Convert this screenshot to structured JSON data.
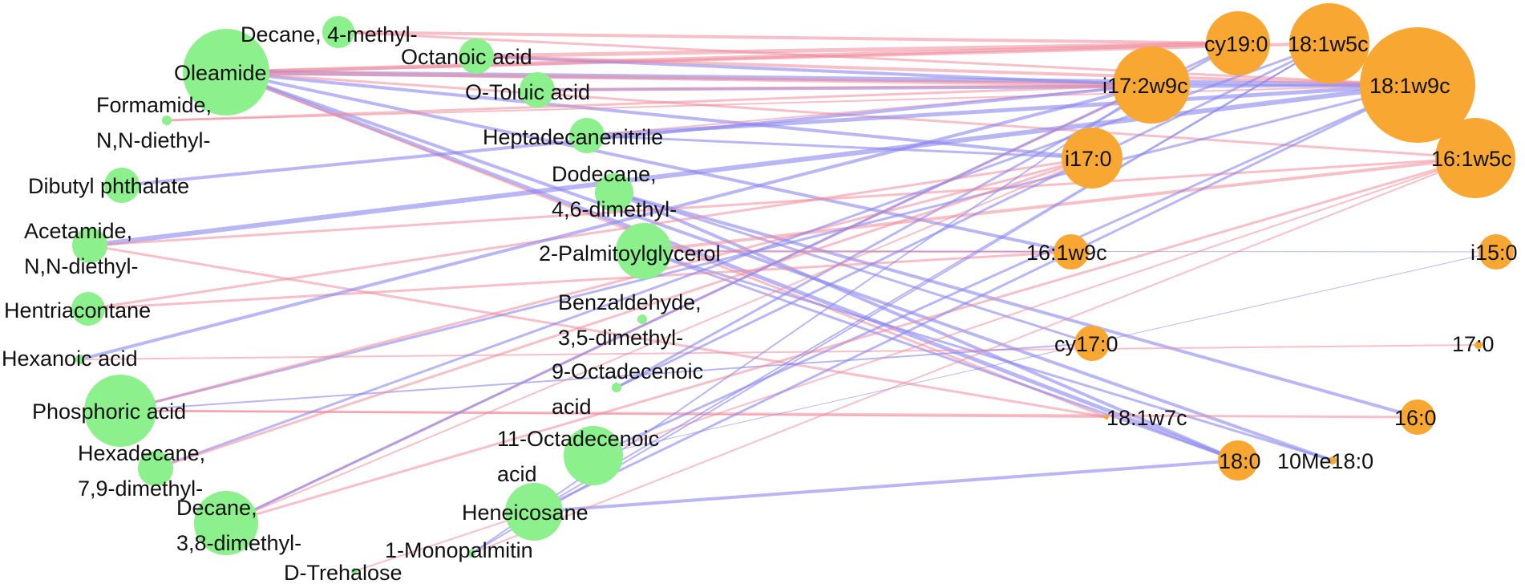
{
  "colors": {
    "metabolite": "#8cf08c",
    "fatty_acid": "#f8a733",
    "positive_edge": "#f08a9a",
    "negative_edge": "#8a86ee",
    "label": "#111111"
  },
  "metabolites": [
    {
      "id": "decane_4_methyl",
      "lines": [
        "Decane, 4-methyl-"
      ]
    },
    {
      "id": "octanoic_acid",
      "lines": [
        "Octanoic acid"
      ]
    },
    {
      "id": "oleamide",
      "lines": [
        "Oleamide"
      ]
    },
    {
      "id": "o_toluic_acid",
      "lines": [
        "O-Toluic acid"
      ]
    },
    {
      "id": "formamide",
      "lines": [
        "Formamide,",
        "N,N-diethyl-"
      ]
    },
    {
      "id": "heptadecanenitrile",
      "lines": [
        "Heptadecanenitrile"
      ]
    },
    {
      "id": "dibutyl_phthalate",
      "lines": [
        "Dibutyl phthalate"
      ]
    },
    {
      "id": "dodecane",
      "lines": [
        "Dodecane,",
        "4,6-dimethyl-"
      ]
    },
    {
      "id": "acetamide",
      "lines": [
        "Acetamide,",
        "N,N-diethyl-"
      ]
    },
    {
      "id": "palmitoylglycerol",
      "lines": [
        "2-Palmitoylglycerol"
      ]
    },
    {
      "id": "hentriacontane",
      "lines": [
        "Hentriacontane"
      ]
    },
    {
      "id": "benzaldehyde",
      "lines": [
        "Benzaldehyde,",
        "3,5-dimethyl-"
      ]
    },
    {
      "id": "hexanoic_acid",
      "lines": [
        "Hexanoic acid"
      ]
    },
    {
      "id": "octadecenoic_9",
      "lines": [
        "9-Octadecenoic",
        "acid"
      ]
    },
    {
      "id": "phosphoric_acid",
      "lines": [
        "Phosphoric acid"
      ]
    },
    {
      "id": "hexadecane",
      "lines": [
        "Hexadecane,",
        "7,9-dimethyl-"
      ]
    },
    {
      "id": "octadecenoic_11",
      "lines": [
        "11-Octadecenoic",
        "acid"
      ]
    },
    {
      "id": "decane_3_8",
      "lines": [
        "Decane,",
        "3,8-dimethyl-"
      ]
    },
    {
      "id": "heneicosane",
      "lines": [
        "Heneicosane"
      ]
    },
    {
      "id": "monopalmitin",
      "lines": [
        "1-Monopalmitin"
      ]
    },
    {
      "id": "trehalose",
      "lines": [
        "D-Trehalose"
      ]
    }
  ],
  "fatty_acids": [
    {
      "id": "cy19_0",
      "lines": [
        "cy19:0"
      ]
    },
    {
      "id": "c18_1w5c",
      "lines": [
        "18:1w5c"
      ]
    },
    {
      "id": "c18_1w9c",
      "lines": [
        "18:1w9c"
      ]
    },
    {
      "id": "i17_2w9c",
      "lines": [
        "i17:2w9c"
      ]
    },
    {
      "id": "i17_0",
      "lines": [
        "i17:0"
      ]
    },
    {
      "id": "c16_1w5c",
      "lines": [
        "16:1w5c"
      ]
    },
    {
      "id": "c16_1w9c",
      "lines": [
        "16:1w9c"
      ]
    },
    {
      "id": "i15_0",
      "lines": [
        "i15:0"
      ]
    },
    {
      "id": "cy17_0",
      "lines": [
        "cy17:0"
      ]
    },
    {
      "id": "c17_0",
      "lines": [
        "17:0"
      ]
    },
    {
      "id": "c18_1w7c",
      "lines": [
        "18:1w7c"
      ]
    },
    {
      "id": "c16_0",
      "lines": [
        "16:0"
      ]
    },
    {
      "id": "c18_0",
      "lines": [
        "18:0"
      ]
    },
    {
      "id": "c10me18_0",
      "lines": [
        "10Me18:0"
      ]
    }
  ],
  "edges": [
    [
      "oleamide",
      "cy19_0",
      "pos",
      5
    ],
    [
      "oleamide",
      "c18_1w5c",
      "pos",
      4
    ],
    [
      "oleamide",
      "c18_1w9c",
      "neg",
      6
    ],
    [
      "oleamide",
      "i17_2w9c",
      "pos",
      5
    ],
    [
      "oleamide",
      "i17_0",
      "neg",
      4
    ],
    [
      "oleamide",
      "c16_1w5c",
      "pos",
      3
    ],
    [
      "oleamide",
      "c16_1w9c",
      "neg",
      4
    ],
    [
      "oleamide",
      "c18_0",
      "neg",
      5
    ],
    [
      "oleamide",
      "c10me18_0",
      "neg",
      4
    ],
    [
      "oleamide",
      "c18_1w7c",
      "pos",
      3
    ],
    [
      "decane_4_methyl",
      "cy19_0",
      "pos",
      4
    ],
    [
      "decane_4_methyl",
      "c18_1w9c",
      "pos",
      3
    ],
    [
      "octanoic_acid",
      "cy19_0",
      "pos",
      5
    ],
    [
      "octanoic_acid",
      "i17_2w9c",
      "neg",
      4
    ],
    [
      "octanoic_acid",
      "c18_1w9c",
      "pos",
      4
    ],
    [
      "o_toluic_acid",
      "c18_1w9c",
      "neg",
      4
    ],
    [
      "o_toluic_acid",
      "i17_2w9c",
      "pos",
      3
    ],
    [
      "formamide",
      "i17_2w9c",
      "pos",
      3
    ],
    [
      "formamide",
      "c18_1w9c",
      "pos",
      2
    ],
    [
      "heptadecanenitrile",
      "c18_1w9c",
      "neg",
      5
    ],
    [
      "heptadecanenitrile",
      "i17_0",
      "neg",
      3
    ],
    [
      "heptadecanenitrile",
      "i17_2w9c",
      "pos",
      2
    ],
    [
      "dibutyl_phthalate",
      "i17_2w9c",
      "neg",
      4
    ],
    [
      "dodecane",
      "c16_0",
      "neg",
      4
    ],
    [
      "dodecane",
      "c18_0",
      "neg",
      4
    ],
    [
      "dodecane",
      "cy17_0",
      "neg",
      3
    ],
    [
      "acetamide",
      "c18_1w9c",
      "neg",
      6
    ],
    [
      "acetamide",
      "c16_1w5c",
      "pos",
      3
    ],
    [
      "acetamide",
      "c18_1w7c",
      "pos",
      3
    ],
    [
      "palmitoylglycerol",
      "c16_1w5c",
      "pos",
      4
    ],
    [
      "palmitoylglycerol",
      "c16_1w9c",
      "pos",
      3
    ],
    [
      "palmitoylglycerol",
      "c18_0",
      "neg",
      3
    ],
    [
      "palmitoylglycerol",
      "c10me18_0",
      "neg",
      3
    ],
    [
      "palmitoylglycerol",
      "i15_0",
      "neg",
      1
    ],
    [
      "hentriacontane",
      "c16_1w9c",
      "pos",
      3
    ],
    [
      "hentriacontane",
      "i17_0",
      "pos",
      3
    ],
    [
      "hexanoic_acid",
      "i17_2w9c",
      "neg",
      4
    ],
    [
      "hexanoic_acid",
      "c17_0",
      "pos",
      2
    ],
    [
      "octadecenoic_9",
      "cy19_0",
      "neg",
      3
    ],
    [
      "octadecenoic_9",
      "c18_1w5c",
      "neg",
      3
    ],
    [
      "phosphoric_acid",
      "c18_1w9c",
      "neg",
      3
    ],
    [
      "phosphoric_acid",
      "c16_0",
      "pos",
      3
    ],
    [
      "phosphoric_acid",
      "c18_1w7c",
      "pos",
      2
    ],
    [
      "phosphoric_acid",
      "cy17_0",
      "neg",
      2
    ],
    [
      "phosphoric_acid",
      "i17_0",
      "pos",
      3
    ],
    [
      "hexadecane",
      "c18_1w5c",
      "neg",
      3
    ],
    [
      "hexadecane",
      "i17_0",
      "pos",
      3
    ],
    [
      "octadecenoic_11",
      "c18_1w9c",
      "neg",
      3
    ],
    [
      "octadecenoic_11",
      "c16_1w5c",
      "pos",
      2
    ],
    [
      "octadecenoic_11",
      "i15_0",
      "neg",
      1
    ],
    [
      "decane_3_8",
      "i17_2w9c",
      "pos",
      3
    ],
    [
      "decane_3_8",
      "cy19_0",
      "neg",
      3
    ],
    [
      "decane_3_8",
      "c16_1w5c",
      "pos",
      3
    ],
    [
      "decane_3_8",
      "i17_0",
      "pos",
      2
    ],
    [
      "heneicosane",
      "c18_0",
      "neg",
      4
    ],
    [
      "heneicosane",
      "c18_1w9c",
      "neg",
      3
    ],
    [
      "heneicosane",
      "c18_1w5c",
      "neg",
      2
    ],
    [
      "monopalmitin",
      "c18_1w5c",
      "neg",
      2
    ],
    [
      "monopalmitin",
      "c16_1w5c",
      "pos",
      2
    ],
    [
      "monopalmitin",
      "i17_2w9c",
      "neg",
      2
    ],
    [
      "trehalose",
      "heneicosane",
      "pos",
      2
    ]
  ]
}
